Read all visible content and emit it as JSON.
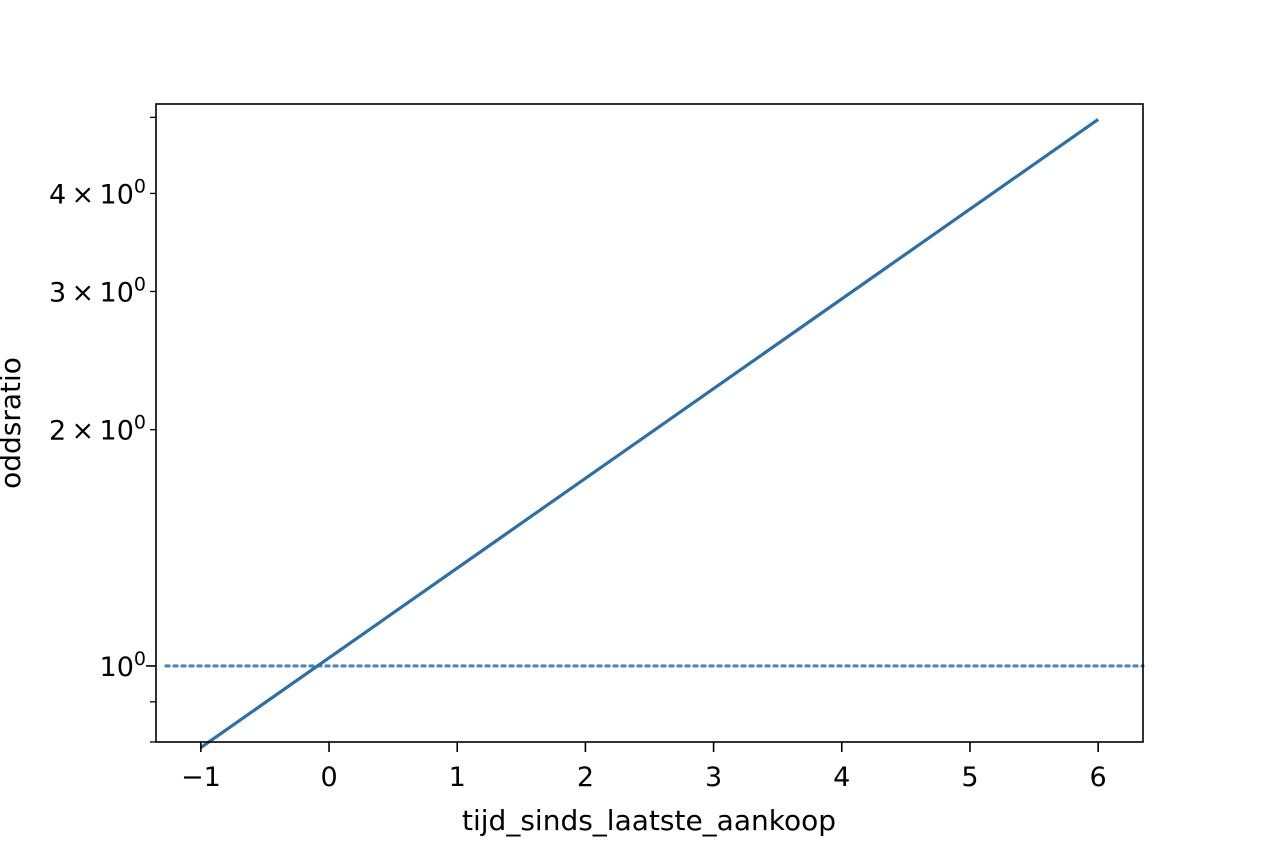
{
  "chart_data": {
    "type": "line",
    "title": "",
    "xlabel": "tijd_sinds_laatste_aankoop",
    "ylabel": "oddsratio",
    "yscale": "log",
    "xlim": [
      -1.35,
      6.35
    ],
    "ylim": [
      0.8,
      5.2
    ],
    "x_ticks": [
      {
        "value": -1,
        "label": "−1"
      },
      {
        "value": 0,
        "label": "0"
      },
      {
        "value": 1,
        "label": "1"
      },
      {
        "value": 2,
        "label": "2"
      },
      {
        "value": 3,
        "label": "3"
      },
      {
        "value": 4,
        "label": "4"
      },
      {
        "value": 5,
        "label": "5"
      },
      {
        "value": 6,
        "label": "6"
      }
    ],
    "y_major_ticks": [
      {
        "value": 1,
        "base": "10",
        "exp": "0"
      }
    ],
    "y_minor_ticks": [
      {
        "value": 0.8
      },
      {
        "value": 0.9
      },
      {
        "value": 2,
        "mantissa": "2",
        "base": "10",
        "exp": "0"
      },
      {
        "value": 3,
        "mantissa": "3",
        "base": "10",
        "exp": "0"
      },
      {
        "value": 4,
        "mantissa": "4",
        "base": "10",
        "exp": "0"
      },
      {
        "value": 5
      }
    ],
    "grid": false,
    "series": [
      {
        "style": "solid",
        "color": "#2f6fa6",
        "x": [
          -1,
          6
        ],
        "y": [
          0.787,
          4.97
        ]
      }
    ],
    "reference_line": {
      "y": 1,
      "style": "dotted",
      "color": "#4a86b8"
    }
  }
}
